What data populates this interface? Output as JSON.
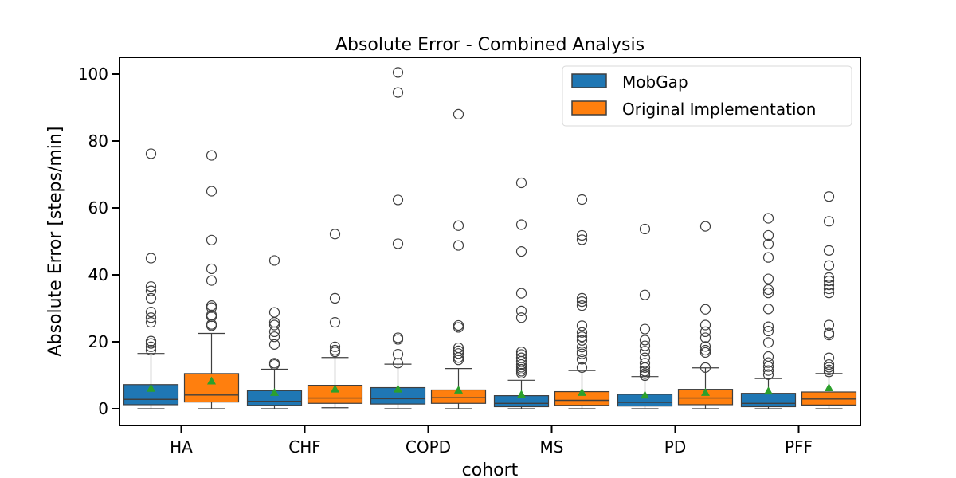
{
  "chart_data": {
    "type": "box",
    "title": "Absolute Error - Combined Analysis",
    "xlabel": "cohort",
    "ylabel": "Absolute Error [steps/min]",
    "categories": [
      "HA",
      "CHF",
      "COPD",
      "MS",
      "PD",
      "PFF"
    ],
    "ylim": [
      -5,
      105
    ],
    "yticks": [
      0,
      20,
      40,
      60,
      80,
      100
    ],
    "legend_position": "top-right",
    "mean_marker_color": "#2ca02c",
    "series": [
      {
        "name": "MobGap",
        "color": "#1f77b4",
        "boxes": [
          {
            "whislo": 0,
            "q1": 1.2,
            "med": 2.8,
            "q3": 7.2,
            "whishi": 16.5,
            "mean": 6.0,
            "fliers": [
              17.5,
              18.5,
              19.5,
              20.2,
              25.8,
              27.2,
              28.9,
              33.0,
              35.2,
              36.5,
              45.0,
              76.2
            ]
          },
          {
            "whislo": 0,
            "q1": 1.0,
            "med": 2.2,
            "q3": 5.4,
            "whishi": 11.8,
            "mean": 4.8,
            "fliers": [
              13.2,
              13.6,
              19.2,
              21.5,
              23.0,
              25.0,
              25.8,
              28.8,
              44.3
            ]
          },
          {
            "whislo": 0,
            "q1": 1.4,
            "med": 3.0,
            "q3": 6.3,
            "whishi": 13.3,
            "mean": 5.8,
            "fliers": [
              13.6,
              16.3,
              20.7,
              21.2,
              49.3,
              62.4,
              94.5,
              100.5
            ]
          },
          {
            "whislo": 0,
            "q1": 0.6,
            "med": 1.6,
            "q3": 3.9,
            "whishi": 8.5,
            "mean": 4.2,
            "fliers": [
              10.6,
              11.2,
              11.8,
              12.4,
              13.2,
              14.2,
              15.2,
              16.2,
              17.0,
              27.2,
              29.2,
              34.5,
              47.0,
              55.0,
              67.5
            ]
          },
          {
            "whislo": 0,
            "q1": 0.8,
            "med": 1.9,
            "q3": 4.3,
            "whishi": 9.6,
            "mean": 4.0,
            "fliers": [
              9.9,
              10.5,
              11.2,
              12.3,
              13.6,
              15.2,
              17.2,
              18.8,
              20.5,
              23.8,
              34.0,
              53.7
            ]
          },
          {
            "whislo": 0,
            "q1": 0.6,
            "med": 1.6,
            "q3": 4.6,
            "whishi": 9.0,
            "mean": 5.2,
            "fliers": [
              10.2,
              11.4,
              12.6,
              13.8,
              15.6,
              19.8,
              23.2,
              24.5,
              29.8,
              34.6,
              35.6,
              38.8,
              45.2,
              49.2,
              51.8,
              56.9
            ]
          }
        ]
      },
      {
        "name": "Original Implementation",
        "color": "#ff7f0e",
        "boxes": [
          {
            "whislo": 0,
            "q1": 2.0,
            "med": 4.1,
            "q3": 10.5,
            "whishi": 22.5,
            "mean": 8.2,
            "fliers": [
              24.8,
              25.2,
              27.5,
              28.0,
              30.2,
              30.8,
              38.3,
              41.8,
              50.4,
              65.0,
              75.7
            ]
          },
          {
            "whislo": 0.3,
            "q1": 1.6,
            "med": 3.2,
            "q3": 7.0,
            "whishi": 15.3,
            "mean": 5.8,
            "fliers": [
              17.0,
              17.5,
              18.5,
              25.8,
              33.0,
              52.2
            ]
          },
          {
            "whislo": 0,
            "q1": 1.6,
            "med": 3.3,
            "q3": 5.6,
            "whishi": 12.0,
            "mean": 5.5,
            "fliers": [
              14.6,
              15.3,
              16.5,
              17.3,
              18.2,
              24.3,
              24.9,
              48.8,
              54.7,
              88.0
            ]
          },
          {
            "whislo": 0,
            "q1": 1.0,
            "med": 2.5,
            "q3": 5.1,
            "whishi": 11.4,
            "mean": 4.8,
            "fliers": [
              12.3,
              14.8,
              16.4,
              17.0,
              18.4,
              20.4,
              21.5,
              22.8,
              24.8,
              30.8,
              32.0,
              33.0,
              50.5,
              51.8,
              62.5
            ]
          },
          {
            "whislo": 0,
            "q1": 1.2,
            "med": 3.2,
            "q3": 5.8,
            "whishi": 12.2,
            "mean": 4.8,
            "fliers": [
              12.3,
              16.8,
              17.5,
              18.6,
              21.2,
              23.0,
              25.0,
              29.7,
              54.5
            ]
          },
          {
            "whislo": 0,
            "q1": 1.1,
            "med": 2.9,
            "q3": 5.0,
            "whishi": 10.5,
            "mean": 6.2,
            "fliers": [
              11.0,
              11.6,
              12.4,
              13.2,
              15.2,
              22.0,
              22.6,
              25.0,
              34.6,
              35.8,
              37.0,
              38.2,
              39.2,
              42.8,
              47.3,
              56.0,
              63.4
            ]
          }
        ]
      }
    ]
  }
}
